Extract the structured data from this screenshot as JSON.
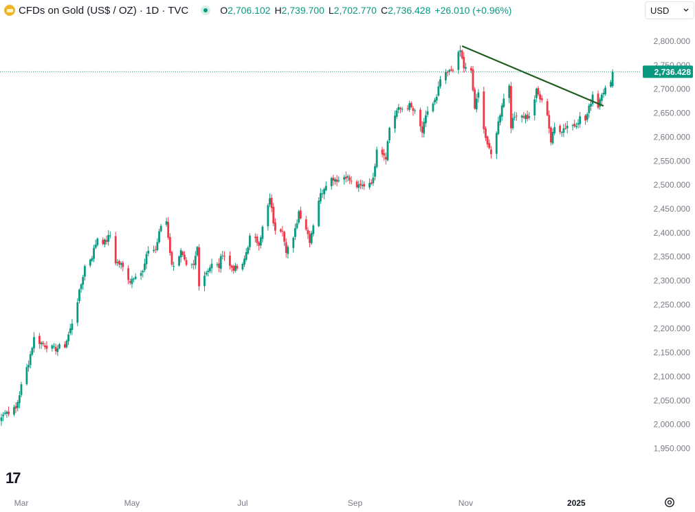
{
  "header": {
    "title": "CFDs on Gold (US$ / OZ) · 1D · TVC",
    "open_label": "O",
    "open_value": "2,706.102",
    "high_label": "H",
    "high_value": "2,739.700",
    "low_label": "L",
    "low_value": "2,702.770",
    "close_label": "C",
    "close_value": "2,736.428",
    "change": "+26.010 (+0.96%)"
  },
  "currency": {
    "label": "USD",
    "icon": "chevron-down-icon"
  },
  "price_tag": "2,736.428",
  "branding": {
    "logo_text": "17"
  },
  "colors": {
    "up": "#089981",
    "down": "#f23645",
    "trendline": "#1e5c1e",
    "axis_text": "#787b86",
    "tag_bg": "#089981"
  },
  "chart_data": {
    "type": "candlestick",
    "title": "CFDs on Gold (US$ / OZ) · 1D · TVC",
    "x_tick_labels": [
      "Mar",
      "May",
      "Jul",
      "Sep",
      "Nov",
      "2025"
    ],
    "y_tick_labels": [
      "2,800.000",
      "2,750.000",
      "2,700.000",
      "2,650.000",
      "2,600.000",
      "2,550.000",
      "2,500.000",
      "2,450.000",
      "2,400.000",
      "2,350.000",
      "2,300.000",
      "2,250.000",
      "2,200.000",
      "2,150.000",
      "2,100.000",
      "2,050.000",
      "2,000.000",
      "1,950.000"
    ],
    "ylim": [
      1930,
      2830
    ],
    "grid": false,
    "last_close": 2736.428,
    "trendline": {
      "from": {
        "date": "2024-10-30",
        "price": 2790
      },
      "to": {
        "date": "2025-01-16",
        "price": 2665
      }
    },
    "close_path": [
      [
        "2024-02-15",
        2004
      ],
      [
        "2024-02-20",
        2024
      ],
      [
        "2024-02-27",
        2032
      ],
      [
        "2024-03-01",
        2080
      ],
      [
        "2024-03-05",
        2130
      ],
      [
        "2024-03-08",
        2180
      ],
      [
        "2024-03-13",
        2168
      ],
      [
        "2024-03-19",
        2157
      ],
      [
        "2024-03-25",
        2165
      ],
      [
        "2024-03-28",
        2198
      ],
      [
        "2024-04-02",
        2275
      ],
      [
        "2024-04-05",
        2330
      ],
      [
        "2024-04-09",
        2352
      ],
      [
        "2024-04-12",
        2390
      ],
      [
        "2024-04-16",
        2380
      ],
      [
        "2024-04-19",
        2395
      ],
      [
        "2024-04-22",
        2340
      ],
      [
        "2024-04-25",
        2333
      ],
      [
        "2024-04-30",
        2300
      ],
      [
        "2024-05-03",
        2315
      ],
      [
        "2024-05-07",
        2318
      ],
      [
        "2024-05-10",
        2365
      ],
      [
        "2024-05-14",
        2365
      ],
      [
        "2024-05-17",
        2415
      ],
      [
        "2024-05-20",
        2425
      ],
      [
        "2024-05-23",
        2330
      ],
      [
        "2024-05-28",
        2360
      ],
      [
        "2024-05-31",
        2327
      ],
      [
        "2024-06-04",
        2330
      ],
      [
        "2024-06-06",
        2370
      ],
      [
        "2024-06-07",
        2295
      ],
      [
        "2024-06-12",
        2325
      ],
      [
        "2024-06-14",
        2333
      ],
      [
        "2024-06-18",
        2330
      ],
      [
        "2024-06-20",
        2360
      ],
      [
        "2024-06-24",
        2330
      ],
      [
        "2024-06-27",
        2325
      ],
      [
        "2024-07-01",
        2330
      ],
      [
        "2024-07-05",
        2390
      ],
      [
        "2024-07-10",
        2380
      ],
      [
        "2024-07-12",
        2410
      ],
      [
        "2024-07-16",
        2470
      ],
      [
        "2024-07-19",
        2400
      ],
      [
        "2024-07-23",
        2410
      ],
      [
        "2024-07-25",
        2365
      ],
      [
        "2024-07-29",
        2385
      ],
      [
        "2024-08-01",
        2445
      ],
      [
        "2024-08-05",
        2410
      ],
      [
        "2024-08-07",
        2385
      ],
      [
        "2024-08-12",
        2470
      ],
      [
        "2024-08-16",
        2505
      ],
      [
        "2024-08-20",
        2515
      ],
      [
        "2024-08-23",
        2510
      ],
      [
        "2024-08-27",
        2520
      ],
      [
        "2024-08-30",
        2505
      ],
      [
        "2024-09-03",
        2495
      ],
      [
        "2024-09-06",
        2500
      ],
      [
        "2024-09-11",
        2510
      ],
      [
        "2024-09-13",
        2580
      ],
      [
        "2024-09-18",
        2560
      ],
      [
        "2024-09-20",
        2620
      ],
      [
        "2024-09-24",
        2655
      ],
      [
        "2024-09-27",
        2660
      ],
      [
        "2024-10-01",
        2665
      ],
      [
        "2024-10-04",
        2650
      ],
      [
        "2024-10-08",
        2610
      ],
      [
        "2024-10-11",
        2655
      ],
      [
        "2024-10-16",
        2680
      ],
      [
        "2024-10-18",
        2720
      ],
      [
        "2024-10-23",
        2735
      ],
      [
        "2024-10-25",
        2745
      ],
      [
        "2024-10-29",
        2780
      ],
      [
        "2024-10-31",
        2745
      ],
      [
        "2024-11-04",
        2735
      ],
      [
        "2024-11-06",
        2660
      ],
      [
        "2024-11-08",
        2690
      ],
      [
        "2024-11-12",
        2600
      ],
      [
        "2024-11-14",
        2570
      ],
      [
        "2024-11-15",
        2562
      ],
      [
        "2024-11-19",
        2630
      ],
      [
        "2024-11-21",
        2670
      ],
      [
        "2024-11-25",
        2710
      ],
      [
        "2024-11-26",
        2625
      ],
      [
        "2024-11-29",
        2650
      ],
      [
        "2024-12-03",
        2645
      ],
      [
        "2024-12-06",
        2640
      ],
      [
        "2024-12-10",
        2695
      ],
      [
        "2024-12-12",
        2680
      ],
      [
        "2024-12-16",
        2650
      ],
      [
        "2024-12-18",
        2590
      ],
      [
        "2024-12-20",
        2620
      ],
      [
        "2024-12-24",
        2615
      ],
      [
        "2024-12-27",
        2625
      ],
      [
        "2024-12-31",
        2625
      ],
      [
        "2025-01-03",
        2640
      ],
      [
        "2025-01-06",
        2635
      ],
      [
        "2025-01-08",
        2660
      ],
      [
        "2025-01-10",
        2690
      ],
      [
        "2025-01-13",
        2665
      ],
      [
        "2025-01-15",
        2695
      ],
      [
        "2025-01-17",
        2700
      ],
      [
        "2025-01-20",
        2710
      ],
      [
        "2025-01-21",
        2736.428
      ]
    ]
  }
}
